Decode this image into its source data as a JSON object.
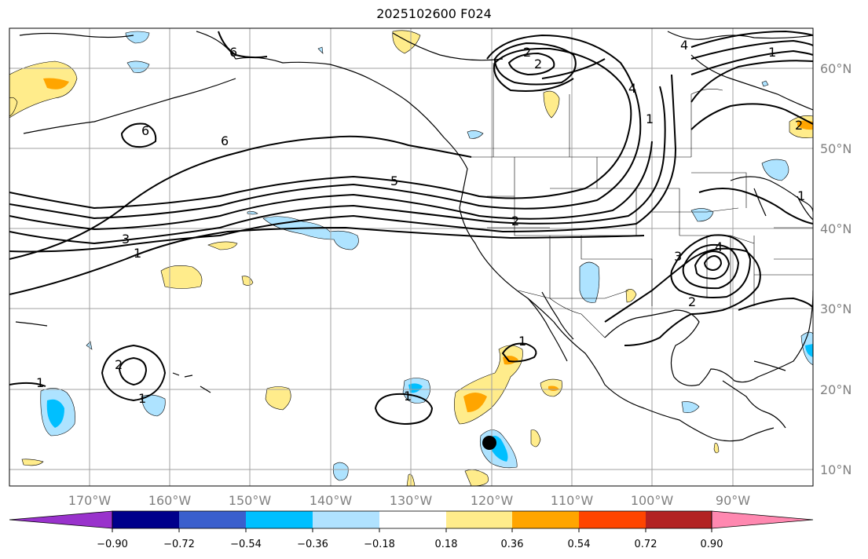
{
  "title": "2025102600 F024",
  "map": {
    "lat_labels": [
      "60°N",
      "50°N",
      "40°N",
      "30°N",
      "20°N",
      "10°N"
    ],
    "lon_labels": [
      "170°W",
      "160°W",
      "150°W",
      "140°W",
      "130°W",
      "120°W",
      "110°W",
      "100°W",
      "90°W"
    ],
    "contour_labels": [
      "6",
      "6",
      "6",
      "5",
      "4",
      "3",
      "2",
      "1",
      "1",
      "1",
      "2",
      "2",
      "3",
      "4",
      "4",
      "2",
      "1",
      "1",
      "1",
      "2",
      "2",
      "1",
      "1"
    ],
    "shade_colors": {
      "light_yellow": "#ffec8b",
      "orange": "#ffa500",
      "light_blue": "#aee3ff",
      "cyan_blue": "#00bfff"
    },
    "marker": "storm-center-dot"
  },
  "colorbar": {
    "colors": [
      "#9932cc",
      "#00008b",
      "#3a5fcd",
      "#00bfff",
      "#b0e2ff",
      "#ffffff",
      "#ffec8b",
      "#ffa500",
      "#ff4500",
      "#b22222",
      "#ff88b0"
    ],
    "tick_labels": [
      "−0.90",
      "−0.72",
      "−0.54",
      "−0.36",
      "−0.18",
      "0.18",
      "0.36",
      "0.54",
      "0.72",
      "0.90"
    ]
  }
}
